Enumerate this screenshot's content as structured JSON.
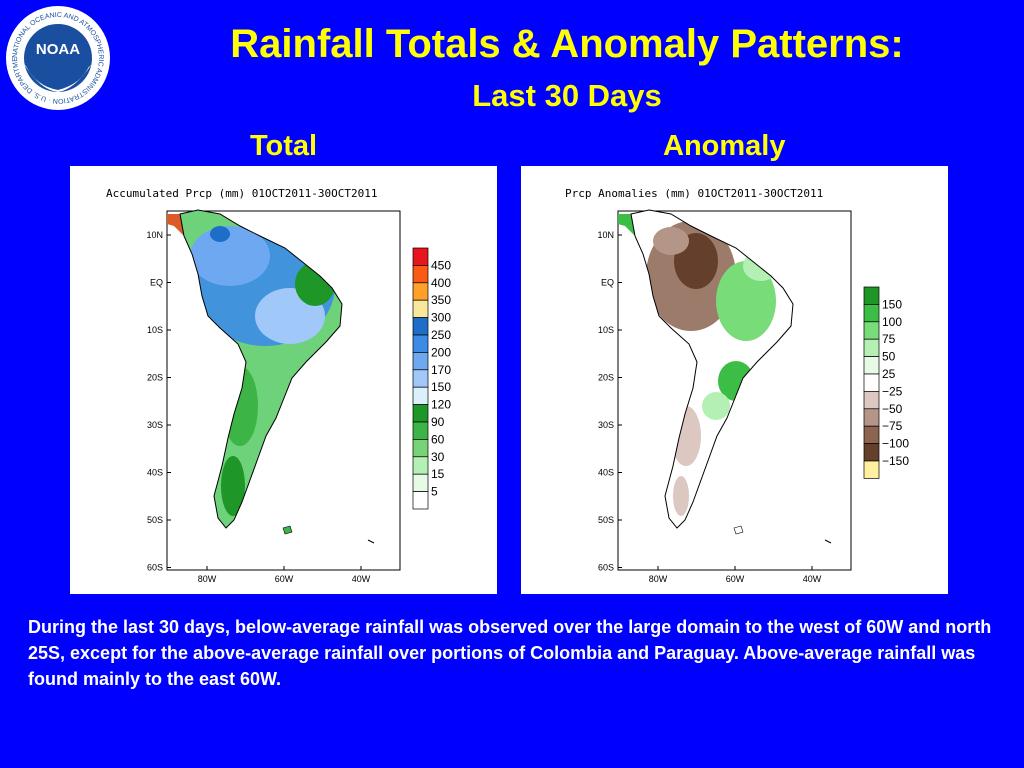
{
  "logo": {
    "name": "NOAA",
    "ring_text": "NATIONAL OCEANIC AND ATMOSPHERIC ADMINISTRATION · U.S. DEPARTMENT OF COMMERCE"
  },
  "header": {
    "title": "Rainfall Totals & Anomaly Patterns:",
    "subtitle": "Last 30 Days"
  },
  "panels": {
    "total": {
      "label": "Total",
      "map_title": "Accumulated Prcp (mm) 01OCT2011-30OCT2011",
      "lat_ticks": [
        "10N",
        "EQ",
        "10S",
        "20S",
        "30S",
        "40S",
        "50S",
        "60S"
      ],
      "lon_ticks": [
        "80W",
        "60W",
        "40W"
      ],
      "colorbar": {
        "labels": [
          "450",
          "400",
          "350",
          "300",
          "250",
          "200",
          "170",
          "150",
          "120",
          "90",
          "60",
          "30",
          "15",
          "5"
        ],
        "colors": [
          "#e8141e",
          "#fa5a14",
          "#ffa028",
          "#fae89a",
          "#1e6ec8",
          "#3c8ce6",
          "#6ea8f0",
          "#a0c8f8",
          "#dcf0fc",
          "#1e9628",
          "#3cb446",
          "#78d278",
          "#b4f0b4",
          "#e6fae6",
          "#ffffff"
        ]
      }
    },
    "anomaly": {
      "label": "Anomaly",
      "map_title": "Prcp Anomalies (mm) 01OCT2011-30OCT2011",
      "lat_ticks": [
        "10N",
        "EQ",
        "10S",
        "20S",
        "30S",
        "40S",
        "50S",
        "60S"
      ],
      "lon_ticks": [
        "80W",
        "60W",
        "40W"
      ],
      "colorbar": {
        "labels": [
          "150",
          "100",
          "75",
          "50",
          "25",
          "−25",
          "−50",
          "−75",
          "−100",
          "−150"
        ],
        "colors": [
          "#1e9628",
          "#3cbe46",
          "#78dc78",
          "#b4f0b4",
          "#e6fae6",
          "#ffffff",
          "#dcc8c0",
          "#b49688",
          "#8c6450",
          "#64402c",
          "#fff0a0"
        ]
      }
    }
  },
  "description": "During the last 30 days, below-average rainfall was observed over the large domain to the west of 60W and north 25S, except for the above-average rainfall over portions of Colombia and Paraguay. Above-average rainfall was found mainly to the east 60W."
}
